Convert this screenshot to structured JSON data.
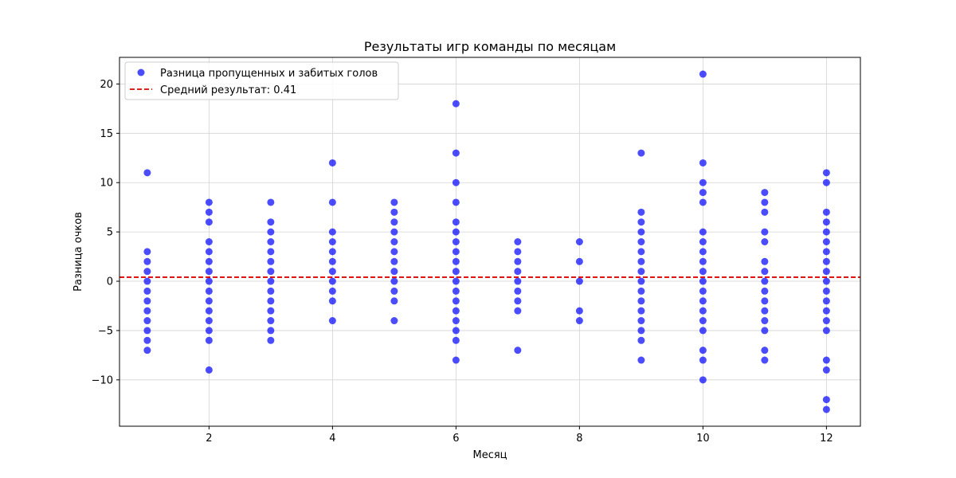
{
  "chart_data": {
    "type": "scatter",
    "title": "Результаты игр команды по месяцам",
    "xlabel": "Месяц",
    "ylabel": "Разница очков",
    "xlim": [
      0.55,
      12.55
    ],
    "ylim": [
      -14.7,
      22.7
    ],
    "xticks": [
      2,
      4,
      6,
      8,
      10,
      12
    ],
    "yticks": [
      -10,
      -5,
      0,
      5,
      10,
      15,
      20
    ],
    "ytick_labels": [
      "−10",
      "−5",
      "0",
      "5",
      "10",
      "15",
      "20"
    ],
    "grid": true,
    "legend_position": "top-left",
    "colors": {
      "points": "#0000ff",
      "mean_line": "#e00000"
    },
    "series": [
      {
        "name": "Разница пропущенных и забитых голов",
        "points": [
          {
            "month": 1,
            "values": [
              11,
              3,
              2,
              1,
              0,
              -1,
              -2,
              -3,
              -4,
              -5,
              -6,
              -7
            ]
          },
          {
            "month": 2,
            "values": [
              8,
              7,
              6,
              4,
              3,
              2,
              1,
              0,
              -1,
              -2,
              -3,
              -4,
              -5,
              -6,
              -9
            ]
          },
          {
            "month": 3,
            "values": [
              8,
              6,
              5,
              4,
              3,
              2,
              1,
              0,
              -1,
              -2,
              -3,
              -4,
              -5,
              -6
            ]
          },
          {
            "month": 4,
            "values": [
              12,
              8,
              5,
              4,
              3,
              2,
              1,
              0,
              -1,
              -2,
              -4
            ]
          },
          {
            "month": 5,
            "values": [
              8,
              7,
              6,
              5,
              4,
              3,
              2,
              1,
              0,
              -1,
              -2,
              -4
            ]
          },
          {
            "month": 6,
            "values": [
              18,
              13,
              10,
              8,
              6,
              5,
              4,
              3,
              2,
              1,
              0,
              -1,
              -2,
              -3,
              -4,
              -5,
              -6,
              -8
            ]
          },
          {
            "month": 7,
            "values": [
              4,
              3,
              2,
              1,
              0,
              -1,
              -2,
              -3,
              -7
            ]
          },
          {
            "month": 8,
            "values": [
              4,
              2,
              0,
              -3,
              -4
            ]
          },
          {
            "month": 9,
            "values": [
              13,
              7,
              6,
              5,
              4,
              3,
              2,
              1,
              0,
              -1,
              -2,
              -3,
              -4,
              -5,
              -6,
              -8
            ]
          },
          {
            "month": 10,
            "values": [
              21,
              12,
              10,
              9,
              8,
              5,
              4,
              3,
              2,
              1,
              0,
              -1,
              -2,
              -3,
              -4,
              -5,
              -7,
              -8,
              -10
            ]
          },
          {
            "month": 11,
            "values": [
              9,
              8,
              7,
              5,
              4,
              2,
              1,
              0,
              -1,
              -2,
              -3,
              -4,
              -5,
              -7,
              -8
            ]
          },
          {
            "month": 12,
            "values": [
              11,
              10,
              7,
              6,
              5,
              4,
              3,
              2,
              1,
              0,
              -1,
              -2,
              -3,
              -4,
              -5,
              -8,
              -9,
              -12,
              -13
            ]
          }
        ]
      }
    ],
    "mean_line": {
      "name": "Средний результат: 0.41",
      "value": 0.41
    }
  }
}
